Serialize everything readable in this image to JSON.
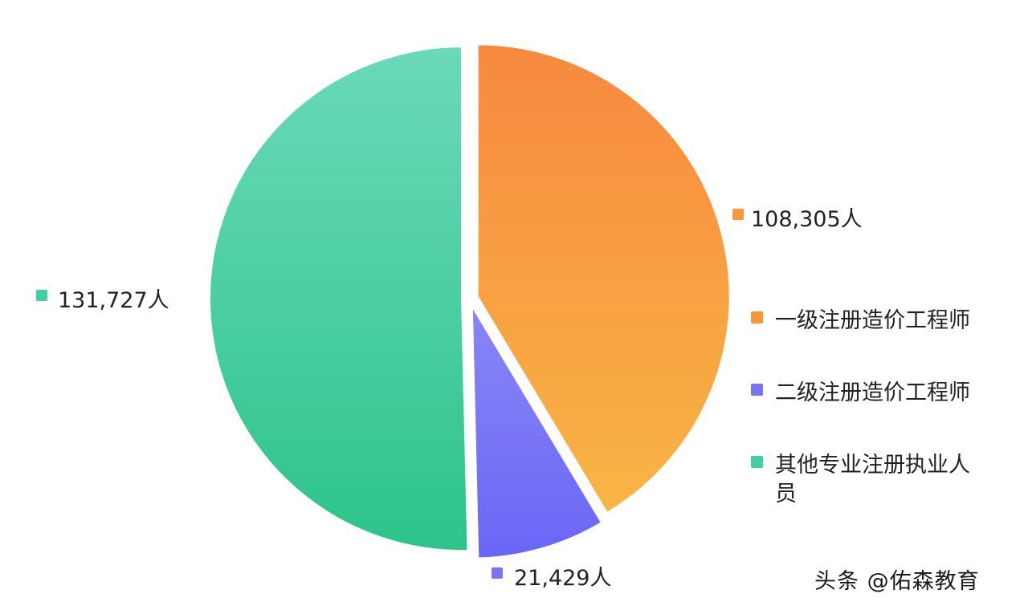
{
  "chart_data": {
    "type": "pie",
    "slices": [
      {
        "name": "一级注册造价工程师",
        "value": 108305,
        "label": "108,305人",
        "color": "#F7963A"
      },
      {
        "name": "二级注册造价工程师",
        "value": 21429,
        "label": "21,429人",
        "color": "#7A73F5"
      },
      {
        "name": "其他专业注册执业人员",
        "value": 131727,
        "label": "131,727人",
        "color": "#3FCFA0"
      }
    ],
    "legend": {
      "position": "right",
      "items": [
        {
          "lines": [
            "一级注册造价工程师"
          ],
          "color": "#F7963A"
        },
        {
          "lines": [
            "二级注册造价工程师"
          ],
          "color": "#7A73F5"
        },
        {
          "lines": [
            "其他专业注册执业人",
            "员"
          ],
          "color": "#3FCFA0"
        }
      ]
    }
  },
  "watermark": "头条 @佑森教育"
}
